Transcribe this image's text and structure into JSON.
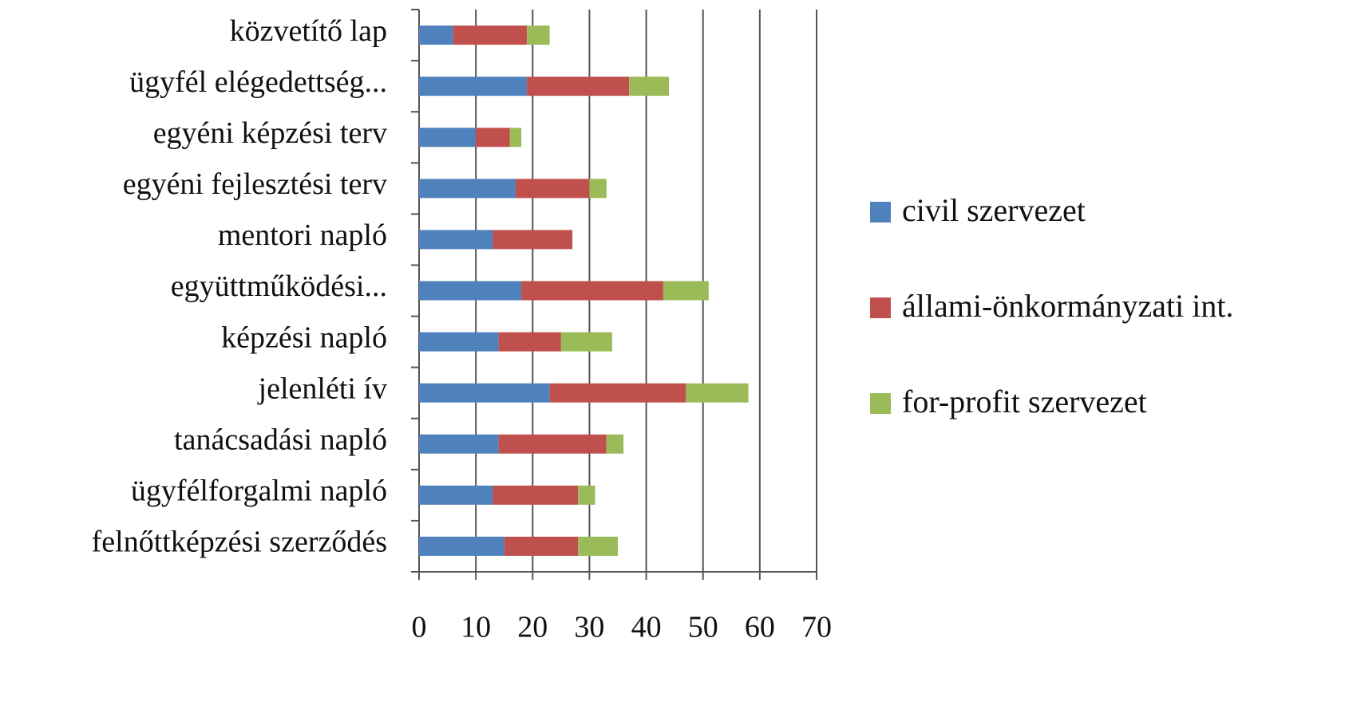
{
  "chart_data": {
    "type": "stacked-bar-horizontal",
    "categories": [
      "közvetítő lap",
      "ügyfél elégedettség...",
      "egyéni képzési terv",
      "egyéni fejlesztési terv",
      "mentori napló",
      "együttműködési...",
      "képzési napló",
      "jelenléti ív",
      "tanácsadási napló",
      "ügyfélforgalmi napló",
      "felnőttképzési szerződés"
    ],
    "series": [
      {
        "name": "civil szervezet",
        "color": "#4f81bd",
        "values": [
          6,
          19,
          10,
          17,
          13,
          18,
          14,
          23,
          14,
          13,
          15
        ]
      },
      {
        "name": "állami-önkormányzati int.",
        "color": "#c0504d",
        "values": [
          13,
          18,
          6,
          13,
          14,
          25,
          11,
          24,
          19,
          15,
          13
        ]
      },
      {
        "name": "for-profit szervezet",
        "color": "#9bbb59",
        "values": [
          4,
          7,
          2,
          3,
          0,
          8,
          9,
          11,
          3,
          3,
          7
        ]
      }
    ],
    "xlim": [
      0,
      70
    ],
    "xticks": [
      0,
      10,
      20,
      30,
      40,
      50,
      60,
      70
    ],
    "grid": true,
    "legend": "right"
  }
}
